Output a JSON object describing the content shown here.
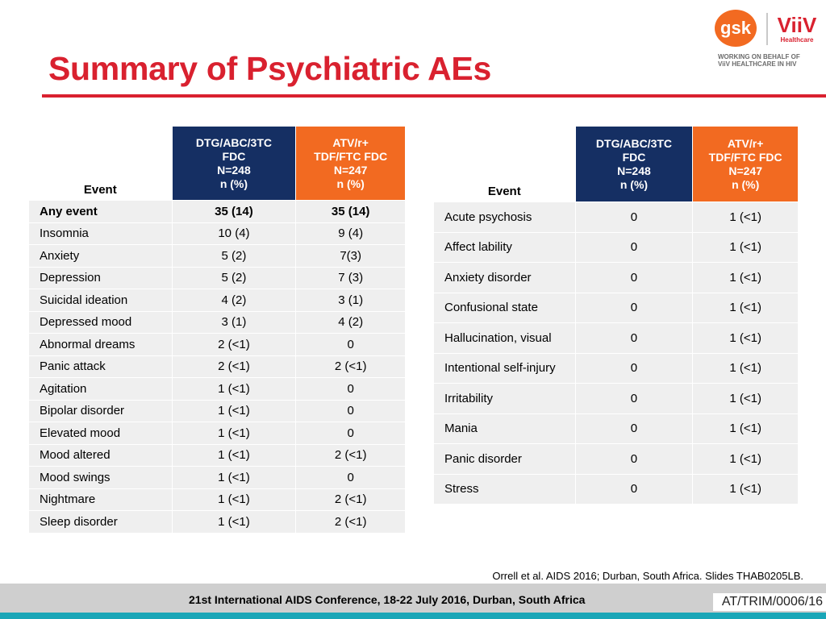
{
  "slide": {
    "title": "Summary of Psychiatric AEs"
  },
  "logo": {
    "gsk_text": "gsk",
    "viiv_text": "ViiV",
    "viiv_sub": "Healthcare",
    "note_line1": "WORKING ON BEHALF OF",
    "note_line2": "ViiV HEALTHCARE IN HIV"
  },
  "headers": {
    "event": "Event",
    "dtg": [
      "DTG/ABC/3TC",
      "FDC",
      "N=248",
      "n (%)"
    ],
    "atv": [
      "ATV/r+",
      "TDF/FTC FDC",
      "N=247",
      "n (%)"
    ]
  },
  "left_table": [
    {
      "event": "Any event",
      "dtg": "35 (14)",
      "atv": "35 (14)"
    },
    {
      "event": "Insomnia",
      "dtg": "10 (4)",
      "atv": "9 (4)"
    },
    {
      "event": "Anxiety",
      "dtg": "5 (2)",
      "atv": "7(3)"
    },
    {
      "event": "Depression",
      "dtg": "5 (2)",
      "atv": "7 (3)"
    },
    {
      "event": "Suicidal ideation",
      "dtg": "4 (2)",
      "atv": "3 (1)"
    },
    {
      "event": "Depressed mood",
      "dtg": "3 (1)",
      "atv": "4 (2)"
    },
    {
      "event": "Abnormal dreams",
      "dtg": "2 (<1)",
      "atv": "0"
    },
    {
      "event": "Panic attack",
      "dtg": "2 (<1)",
      "atv": "2 (<1)"
    },
    {
      "event": "Agitation",
      "dtg": "1 (<1)",
      "atv": "0"
    },
    {
      "event": "Bipolar disorder",
      "dtg": "1 (<1)",
      "atv": "0"
    },
    {
      "event": "Elevated mood",
      "dtg": "1 (<1)",
      "atv": "0"
    },
    {
      "event": "Mood altered",
      "dtg": "1 (<1)",
      "atv": "2 (<1)"
    },
    {
      "event": "Mood swings",
      "dtg": "1 (<1)",
      "atv": "0"
    },
    {
      "event": "Nightmare",
      "dtg": "1 (<1)",
      "atv": "2 (<1)"
    },
    {
      "event": "Sleep disorder",
      "dtg": "1 (<1)",
      "atv": "2 (<1)"
    }
  ],
  "right_table": [
    {
      "event": "Acute psychosis",
      "dtg": "0",
      "atv": "1 (<1)"
    },
    {
      "event": "Affect lability",
      "dtg": "0",
      "atv": "1 (<1)"
    },
    {
      "event": "Anxiety disorder",
      "dtg": "0",
      "atv": "1 (<1)"
    },
    {
      "event": "Confusional state",
      "dtg": "0",
      "atv": "1 (<1)"
    },
    {
      "event": "Hallucination, visual",
      "dtg": "0",
      "atv": "1 (<1)"
    },
    {
      "event": "Intentional self-injury",
      "dtg": "0",
      "atv": "1 (<1)"
    },
    {
      "event": "Irritability",
      "dtg": "0",
      "atv": "1 (<1)"
    },
    {
      "event": "Mania",
      "dtg": "0",
      "atv": "1 (<1)"
    },
    {
      "event": "Panic disorder",
      "dtg": "0",
      "atv": "1 (<1)"
    },
    {
      "event": "Stress",
      "dtg": "0",
      "atv": "1 (<1)"
    }
  ],
  "footer": {
    "citation": "Orrell et al. AIDS 2016; Durban, South Africa. Slides THAB0205LB.",
    "conference": "21st International AIDS Conference, 18-22 July 2016, Durban, South Africa",
    "code": "AT/TRIM/0006/16"
  },
  "colors": {
    "title_red": "#d9212f",
    "dtg_header": "#152f63",
    "atv_header": "#f26a21",
    "row_gray": "#efefef",
    "footer_gray": "#cfcfcf",
    "teal": "#1aa6b7"
  }
}
